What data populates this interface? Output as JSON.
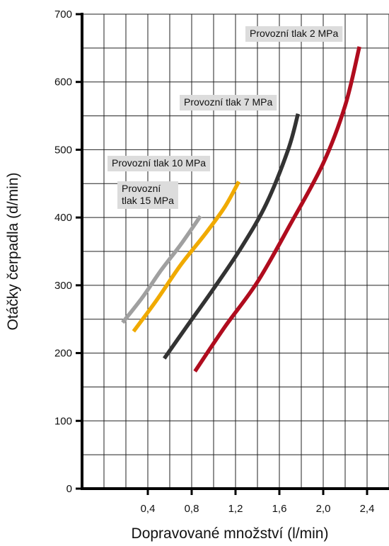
{
  "chart_data": {
    "type": "line",
    "title": "",
    "xlabel": "Dopravované množství (l/min)",
    "ylabel": "Otáčky čerpadla (d/min)",
    "xlim": [
      -0.2,
      2.6
    ],
    "ylim": [
      0,
      700
    ],
    "x_ticks": [
      "0,4",
      "0,8",
      "1,2",
      "1,6",
      "2,0",
      "2,4"
    ],
    "y_ticks": [
      "0",
      "100",
      "200",
      "300",
      "400",
      "500",
      "600",
      "700"
    ],
    "grid": true,
    "series": [
      {
        "name": "Provozní tlak 15 MPa",
        "label_lines": [
          "Provozní",
          "tlak 15 MPa"
        ],
        "color": "#a0a0a0",
        "points": [
          [
            0.17,
            245
          ],
          [
            0.35,
            282
          ],
          [
            0.52,
            322
          ],
          [
            0.7,
            360
          ],
          [
            0.88,
            402
          ]
        ]
      },
      {
        "name": "Provozní tlak 10 MPa",
        "label_lines": [
          "Provozní tlak 10 MPa"
        ],
        "color": "#f0aa00",
        "points": [
          [
            0.27,
            232
          ],
          [
            0.48,
            278
          ],
          [
            0.7,
            330
          ],
          [
            0.92,
            375
          ],
          [
            1.1,
            415
          ],
          [
            1.23,
            453
          ]
        ]
      },
      {
        "name": "Provozní tlak 7 MPa",
        "label_lines": [
          "Provozní tlak 7 MPa"
        ],
        "color": "#333333",
        "points": [
          [
            0.55,
            192
          ],
          [
            0.75,
            238
          ],
          [
            1.0,
            295
          ],
          [
            1.25,
            355
          ],
          [
            1.48,
            420
          ],
          [
            1.68,
            500
          ],
          [
            1.77,
            553
          ]
        ]
      },
      {
        "name": "Provozní tlak 2 MPa",
        "label_lines": [
          "Provozní tlak 2 MPa"
        ],
        "color": "#b00c1e",
        "points": [
          [
            0.83,
            173
          ],
          [
            1.1,
            238
          ],
          [
            1.4,
            305
          ],
          [
            1.7,
            390
          ],
          [
            2.0,
            480
          ],
          [
            2.2,
            565
          ],
          [
            2.33,
            652
          ]
        ]
      }
    ]
  }
}
